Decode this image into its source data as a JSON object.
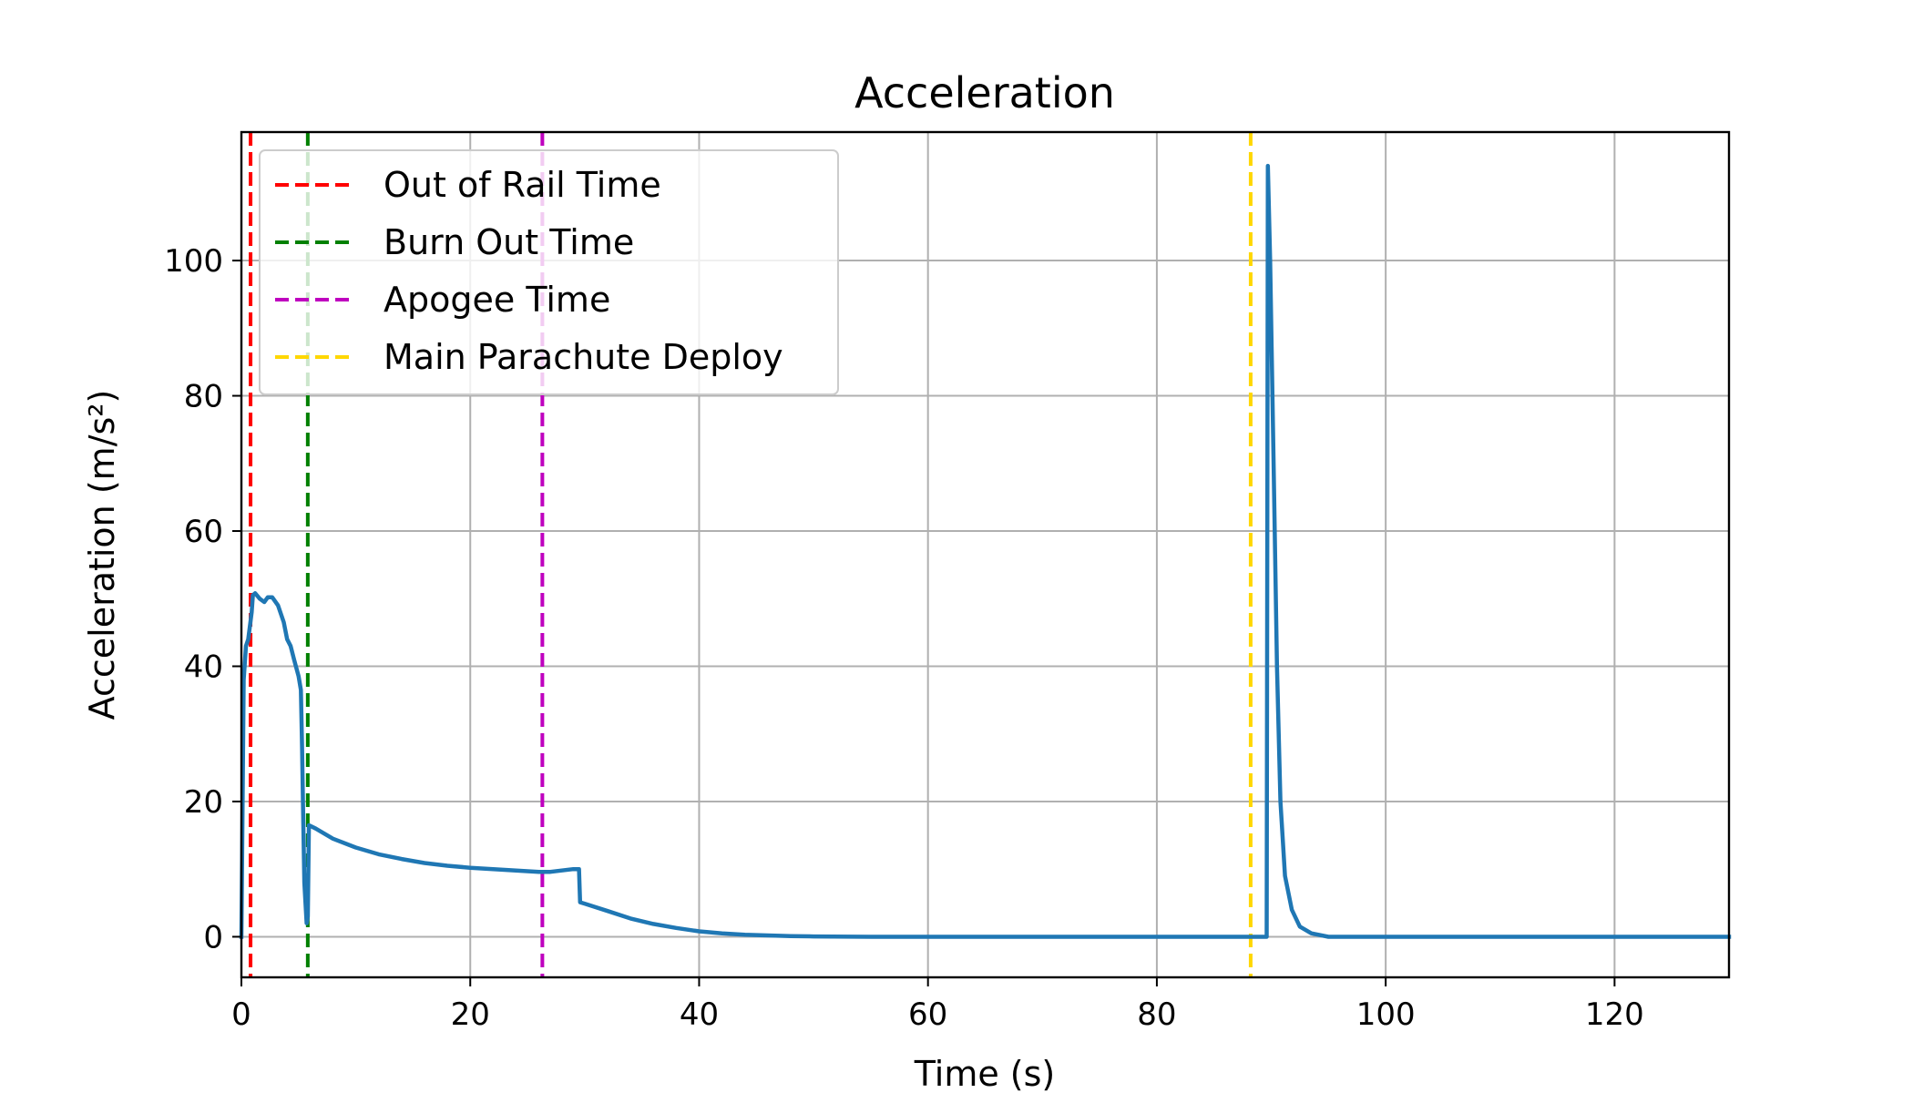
{
  "chart_data": {
    "type": "line",
    "title": "Acceleration",
    "xlabel": "Time (s)",
    "ylabel": "Acceleration (m/s²)",
    "xlim": [
      0,
      130
    ],
    "ylim": [
      -6,
      119
    ],
    "xticks": [
      0,
      20,
      40,
      60,
      80,
      100,
      120
    ],
    "yticks": [
      0,
      20,
      40,
      60,
      80,
      100
    ],
    "grid": true,
    "legend_position": "top-left",
    "series": [
      {
        "color": "#1f77b4",
        "points": [
          [
            0,
            0
          ],
          [
            0.2,
            38
          ],
          [
            0.4,
            43
          ],
          [
            0.6,
            44
          ],
          [
            0.9,
            48
          ],
          [
            1.0,
            50.5
          ],
          [
            1.2,
            50.8
          ],
          [
            1.6,
            50
          ],
          [
            2.0,
            49.5
          ],
          [
            2.3,
            50.2
          ],
          [
            2.7,
            50.2
          ],
          [
            3.2,
            49.0
          ],
          [
            3.7,
            46.5
          ],
          [
            4.0,
            44
          ],
          [
            4.3,
            43
          ],
          [
            4.6,
            41
          ],
          [
            5.0,
            38.5
          ],
          [
            5.2,
            36.5
          ],
          [
            5.3,
            28
          ],
          [
            5.4,
            18
          ],
          [
            5.5,
            8
          ],
          [
            5.7,
            2
          ],
          [
            5.8,
            3
          ],
          [
            5.9,
            16.5
          ],
          [
            6.5,
            16
          ],
          [
            8,
            14.5
          ],
          [
            10,
            13.2
          ],
          [
            12,
            12.2
          ],
          [
            14,
            11.5
          ],
          [
            16,
            10.9
          ],
          [
            18,
            10.5
          ],
          [
            20,
            10.2
          ],
          [
            22,
            10
          ],
          [
            24,
            9.8
          ],
          [
            26,
            9.6
          ],
          [
            27,
            9.6
          ],
          [
            28,
            9.8
          ],
          [
            29,
            10
          ],
          [
            29.5,
            10
          ],
          [
            29.6,
            5.1
          ],
          [
            30,
            4.9
          ],
          [
            32,
            3.8
          ],
          [
            34,
            2.7
          ],
          [
            36,
            1.9
          ],
          [
            38,
            1.3
          ],
          [
            40,
            0.8
          ],
          [
            42,
            0.5
          ],
          [
            44,
            0.3
          ],
          [
            46,
            0.2
          ],
          [
            48,
            0.1
          ],
          [
            50,
            0.05
          ],
          [
            55,
            0
          ],
          [
            60,
            0
          ],
          [
            70,
            0
          ],
          [
            80,
            0
          ],
          [
            88,
            0
          ],
          [
            89.6,
            0
          ],
          [
            89.7,
            114
          ],
          [
            89.9,
            100
          ],
          [
            90.2,
            70
          ],
          [
            90.5,
            40
          ],
          [
            90.8,
            20
          ],
          [
            91.2,
            9
          ],
          [
            91.8,
            4
          ],
          [
            92.5,
            1.5
          ],
          [
            93.5,
            0.5
          ],
          [
            95,
            0
          ],
          [
            100,
            0
          ],
          [
            110,
            0
          ],
          [
            120,
            0
          ],
          [
            130,
            0
          ]
        ]
      }
    ],
    "event_lines": [
      {
        "name": "Out of Rail Time",
        "x": 0.8,
        "color": "#ff0000"
      },
      {
        "name": "Burn Out Time",
        "x": 5.8,
        "color": "#008000"
      },
      {
        "name": "Apogee Time",
        "x": 26.3,
        "color": "#bf00bf"
      },
      {
        "name": "Main Parachute Deploy",
        "x": 88.2,
        "color": "#ffd700"
      }
    ]
  }
}
